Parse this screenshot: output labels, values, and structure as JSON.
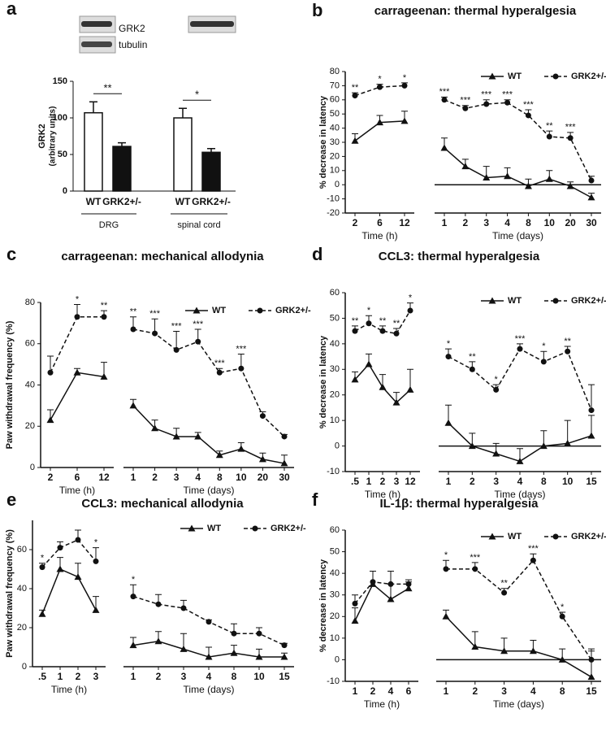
{
  "chart_data": [
    {
      "type": "bar",
      "panel": "a",
      "blot_labels": [
        "GRK2",
        "tubulin"
      ],
      "ylabel": [
        "GRK2",
        "(arbitrary units)"
      ],
      "categories": [
        "WT",
        "GRK2+/-",
        "WT",
        "GRK2+/-"
      ],
      "groups": [
        "DRG",
        "spinal cord"
      ],
      "values": [
        107,
        61,
        100,
        53
      ],
      "errors": [
        15,
        5,
        13,
        5
      ],
      "colors": [
        "#ffffff",
        "#111111",
        "#ffffff",
        "#111111"
      ],
      "significance": [
        "**",
        "*"
      ],
      "ylim": [
        0,
        150
      ],
      "yticks": [
        0,
        50,
        100,
        150
      ]
    },
    {
      "type": "line",
      "panel": "b",
      "title": "carrageenan: thermal hyperalgesia",
      "ylabel": "% decrease in latency",
      "ylim": [
        -20,
        80
      ],
      "yticks": [
        -20,
        -10,
        0,
        10,
        20,
        30,
        40,
        50,
        60,
        70,
        80
      ],
      "series": [
        {
          "name": "WT",
          "marker": "triangle",
          "dashed": false,
          "color": "#111111"
        },
        {
          "name": "GRK2+/-",
          "marker": "circle",
          "dashed": true,
          "color": "#111111"
        }
      ],
      "plots": [
        {
          "xlabel": "Time (h)",
          "categories": [
            "2",
            "6",
            "12"
          ],
          "series": [
            {
              "values": [
                31,
                44,
                45
              ],
              "errors": [
                5,
                5,
                7
              ],
              "stars": [
                null,
                null,
                null
              ]
            },
            {
              "values": [
                63,
                69,
                70
              ],
              "errors": [
                2,
                2,
                2
              ],
              "stars": [
                "**",
                "*",
                "*"
              ]
            }
          ]
        },
        {
          "xlabel": "Time (days)",
          "categories": [
            "1",
            "2",
            "3",
            "4",
            "8",
            "10",
            "20",
            "30"
          ],
          "series": [
            {
              "values": [
                26,
                13,
                5,
                6,
                -1,
                4,
                -1,
                -9
              ],
              "errors": [
                7,
                5,
                8,
                6,
                5,
                6,
                3,
                3
              ],
              "stars": [
                null,
                null,
                null,
                null,
                null,
                null,
                null,
                null
              ]
            },
            {
              "values": [
                60,
                54,
                57,
                58,
                49,
                34,
                33,
                3
              ],
              "errors": [
                2,
                2,
                3,
                2,
                4,
                4,
                4,
                3
              ],
              "stars": [
                "***",
                "***",
                "***",
                "***",
                "***",
                "**",
                "***",
                null
              ]
            }
          ]
        }
      ]
    },
    {
      "type": "line",
      "panel": "c",
      "title": "carrageenan: mechanical allodynia",
      "ylabel": "Paw withdrawal frequency (%)",
      "ylim": [
        0,
        80
      ],
      "yticks": [
        0,
        20,
        40,
        60,
        80
      ],
      "series": [
        {
          "name": "WT",
          "marker": "triangle",
          "dashed": false,
          "color": "#111111"
        },
        {
          "name": "GRK2+/-",
          "marker": "circle",
          "dashed": true,
          "color": "#111111"
        }
      ],
      "plots": [
        {
          "xlabel": "Time (h)",
          "categories": [
            "2",
            "6",
            "12"
          ],
          "series": [
            {
              "values": [
                23,
                46,
                44
              ],
              "errors": [
                5,
                2,
                7
              ],
              "stars": [
                null,
                null,
                null
              ]
            },
            {
              "values": [
                46,
                73,
                73
              ],
              "errors": [
                8,
                6,
                3
              ],
              "stars": [
                null,
                "*",
                "**"
              ]
            }
          ]
        },
        {
          "xlabel": "Time (days)",
          "categories": [
            "1",
            "2",
            "3",
            "4",
            "8",
            "10",
            "20",
            "30"
          ],
          "series": [
            {
              "values": [
                30,
                19,
                15,
                15,
                6,
                9,
                4,
                2
              ],
              "errors": [
                3,
                4,
                4,
                2,
                2,
                3,
                3,
                4
              ],
              "stars": [
                null,
                null,
                null,
                null,
                null,
                null,
                null,
                null
              ]
            },
            {
              "values": [
                67,
                65,
                57,
                61,
                46,
                48,
                25,
                15
              ],
              "errors": [
                6,
                7,
                9,
                6,
                2,
                7,
                2,
                1
              ],
              "stars": [
                "**",
                "***",
                "***",
                "***",
                "***",
                "***",
                null,
                null
              ]
            }
          ]
        }
      ]
    },
    {
      "type": "line",
      "panel": "d",
      "title": "CCL3: thermal hyperalgesia",
      "ylabel": "% decrease in latency",
      "ylim": [
        -10,
        60
      ],
      "yticks": [
        -10,
        0,
        10,
        20,
        30,
        40,
        50,
        60
      ],
      "series": [
        {
          "name": "WT",
          "marker": "triangle",
          "dashed": false,
          "color": "#111111"
        },
        {
          "name": "GRK2+/-",
          "marker": "circle",
          "dashed": true,
          "color": "#111111"
        }
      ],
      "plots": [
        {
          "xlabel": "Time (h)",
          "categories": [
            ".5",
            "1",
            "2",
            "3",
            "12"
          ],
          "series": [
            {
              "values": [
                26,
                32,
                23,
                17,
                22
              ],
              "errors": [
                3,
                4,
                5,
                4,
                8
              ],
              "stars": [
                null,
                null,
                null,
                null,
                null
              ]
            },
            {
              "values": [
                45,
                48,
                45,
                44,
                53
              ],
              "errors": [
                2,
                3,
                2,
                2,
                3
              ],
              "stars": [
                "**",
                "*",
                "**",
                "**",
                "*"
              ]
            }
          ]
        },
        {
          "xlabel": "Time (days)",
          "categories": [
            "1",
            "2",
            "3",
            "4",
            "8",
            "10",
            "15"
          ],
          "series": [
            {
              "values": [
                9,
                0,
                -3,
                -6,
                0,
                1,
                4
              ],
              "errors": [
                7,
                5,
                4,
                5,
                6,
                9,
                8
              ],
              "stars": [
                null,
                null,
                null,
                null,
                null,
                null,
                null
              ]
            },
            {
              "values": [
                35,
                30,
                22,
                38,
                33,
                37,
                14
              ],
              "errors": [
                3,
                3,
                2,
                2,
                4,
                2,
                10
              ],
              "stars": [
                "*",
                "**",
                "*",
                "***",
                "*",
                "**",
                null
              ]
            }
          ]
        }
      ]
    },
    {
      "type": "line",
      "panel": "e",
      "title": "CCL3: mechanical allodynia",
      "ylabel": "Paw withdrawal frequency (%)",
      "ylim": [
        0,
        75
      ],
      "yticks": [
        0,
        20,
        40,
        60
      ],
      "series": [
        {
          "name": "WT",
          "marker": "triangle",
          "dashed": false,
          "color": "#111111"
        },
        {
          "name": "GRK2+/-",
          "marker": "circle",
          "dashed": true,
          "color": "#111111"
        }
      ],
      "plots": [
        {
          "xlabel": "Time (h)",
          "categories": [
            ".5",
            "1",
            "2",
            "3"
          ],
          "series": [
            {
              "values": [
                27,
                50,
                46,
                29
              ],
              "errors": [
                2,
                6,
                7,
                7
              ],
              "stars": [
                null,
                null,
                null,
                null
              ]
            },
            {
              "values": [
                51,
                61,
                65,
                54
              ],
              "errors": [
                2,
                3,
                5,
                7
              ],
              "stars": [
                "*",
                null,
                null,
                "*"
              ]
            }
          ]
        },
        {
          "xlabel": "Time (days)",
          "categories": [
            "1",
            "2",
            "3",
            "4",
            "8",
            "10",
            "15"
          ],
          "series": [
            {
              "values": [
                11,
                13,
                9,
                5,
                7,
                5,
                5
              ],
              "errors": [
                4,
                5,
                8,
                5,
                4,
                4,
                2
              ],
              "stars": [
                null,
                null,
                null,
                null,
                null,
                null,
                null
              ]
            },
            {
              "values": [
                36,
                32,
                30,
                23,
                17,
                17,
                11
              ],
              "errors": [
                6,
                5,
                4,
                1,
                5,
                3,
                1
              ],
              "stars": [
                "*",
                null,
                null,
                null,
                null,
                null,
                null
              ]
            }
          ]
        }
      ]
    },
    {
      "type": "line",
      "panel": "f",
      "title": "IL-1β: thermal hyperalgesia",
      "ylabel": "% decrease in latency",
      "ylim": [
        -10,
        60
      ],
      "yticks": [
        -10,
        0,
        10,
        20,
        30,
        40,
        50,
        60
      ],
      "series": [
        {
          "name": "WT",
          "marker": "triangle",
          "dashed": false,
          "color": "#111111"
        },
        {
          "name": "GRK2+/-",
          "marker": "circle",
          "dashed": true,
          "color": "#111111"
        }
      ],
      "plots": [
        {
          "xlabel": "Time (h)",
          "categories": [
            "1",
            "2",
            "4",
            "6"
          ],
          "series": [
            {
              "values": [
                18,
                35,
                28,
                33
              ],
              "errors": [
                6,
                6,
                7,
                3
              ],
              "stars": [
                null,
                null,
                null,
                null
              ]
            },
            {
              "values": [
                26,
                36,
                35,
                35
              ],
              "errors": [
                4,
                5,
                6,
                2
              ],
              "stars": [
                null,
                null,
                null,
                null
              ]
            }
          ]
        },
        {
          "xlabel": "Time (days)",
          "categories": [
            "1",
            "2",
            "3",
            "4",
            "8",
            "15"
          ],
          "series": [
            {
              "values": [
                20,
                6,
                4,
                4,
                0,
                -8
              ],
              "errors": [
                3,
                7,
                6,
                5,
                5,
                13
              ],
              "stars": [
                null,
                null,
                null,
                null,
                null,
                null
              ]
            },
            {
              "values": [
                42,
                42,
                31,
                46,
                20,
                0
              ],
              "errors": [
                4,
                3,
                2,
                3,
                2,
                4
              ],
              "stars": [
                "*",
                "***",
                "**",
                "***",
                "*",
                null
              ]
            }
          ]
        }
      ]
    }
  ]
}
